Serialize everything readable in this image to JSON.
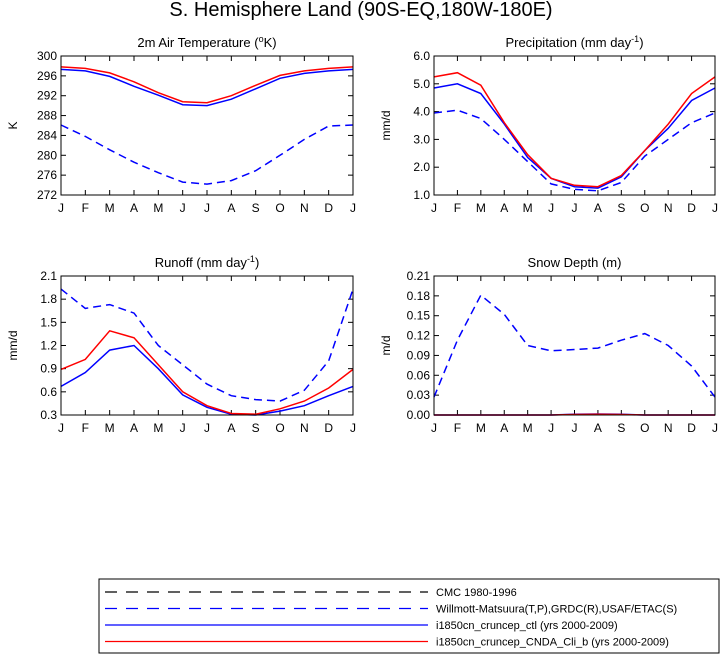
{
  "figure_title": "S. Hemisphere Land (90S-EQ,180W-180E)",
  "months": [
    "J",
    "F",
    "M",
    "A",
    "M",
    "J",
    "J",
    "A",
    "S",
    "O",
    "N",
    "D",
    "J"
  ],
  "colors": {
    "ctl": "#0000ff",
    "cnda": "#ff0000",
    "obs_blue": "#0000ff",
    "obs_black": "#000000"
  },
  "chart_data": [
    {
      "type": "line",
      "title_main": "2m Air Temperature (",
      "title_sup": "o",
      "title_rest": "K)",
      "ylabel": "K",
      "ylim": [
        272,
        300
      ],
      "yticks": [
        "272",
        "276",
        "280",
        "284",
        "288",
        "292",
        "296",
        "300"
      ],
      "x": [
        "J",
        "F",
        "M",
        "A",
        "M",
        "J",
        "J",
        "A",
        "S",
        "O",
        "N",
        "D",
        "J"
      ],
      "series": [
        {
          "key": "obs",
          "style": "dash",
          "color": "#0000ff",
          "values": [
            286.1,
            283.8,
            281.1,
            278.6,
            276.5,
            274.6,
            274.2,
            274.9,
            276.9,
            280.0,
            283.2,
            285.9,
            286.1
          ]
        },
        {
          "key": "ctl",
          "style": "solid",
          "color": "#0000ff",
          "values": [
            297.3,
            297.0,
            295.9,
            293.9,
            292.1,
            290.2,
            290.0,
            291.3,
            293.4,
            295.5,
            296.5,
            297.0,
            297.3
          ]
        },
        {
          "key": "cnda",
          "style": "solid",
          "color": "#ff0000",
          "values": [
            297.8,
            297.5,
            296.6,
            294.8,
            292.6,
            290.8,
            290.6,
            292.0,
            294.1,
            296.1,
            297.0,
            297.5,
            297.8
          ]
        }
      ]
    },
    {
      "type": "line",
      "title_main": "Precipitation (mm day",
      "title_sup": "-1",
      "title_rest": ")",
      "ylabel": "mm/d",
      "ylim": [
        1.0,
        6.0
      ],
      "yticks": [
        "1.0",
        "2.0",
        "3.0",
        "4.0",
        "5.0",
        "6.0"
      ],
      "x": [
        "J",
        "F",
        "M",
        "A",
        "M",
        "J",
        "J",
        "A",
        "S",
        "O",
        "N",
        "D",
        "J"
      ],
      "series": [
        {
          "key": "obs",
          "style": "dash",
          "color": "#0000ff",
          "values": [
            3.95,
            4.05,
            3.75,
            3.0,
            2.2,
            1.4,
            1.2,
            1.15,
            1.45,
            2.4,
            3.0,
            3.6,
            3.95
          ]
        },
        {
          "key": "ctl",
          "style": "solid",
          "color": "#0000ff",
          "values": [
            4.85,
            5.0,
            4.65,
            3.55,
            2.35,
            1.6,
            1.3,
            1.25,
            1.65,
            2.6,
            3.4,
            4.4,
            4.85
          ]
        },
        {
          "key": "cnda",
          "style": "solid",
          "color": "#ff0000",
          "values": [
            5.25,
            5.4,
            4.95,
            3.6,
            2.45,
            1.6,
            1.35,
            1.3,
            1.7,
            2.6,
            3.55,
            4.65,
            5.25
          ]
        }
      ]
    },
    {
      "type": "line",
      "title_main": "Runoff (mm day",
      "title_sup": "-1",
      "title_rest": ")",
      "ylabel": "mm/d",
      "ylim": [
        0.3,
        2.1
      ],
      "yticks": [
        "0.3",
        "0.6",
        "0.9",
        "1.2",
        "1.5",
        "1.8",
        "2.1"
      ],
      "x": [
        "J",
        "F",
        "M",
        "A",
        "M",
        "J",
        "J",
        "A",
        "S",
        "O",
        "N",
        "D",
        "J"
      ],
      "series": [
        {
          "key": "obs",
          "style": "dash",
          "color": "#0000ff",
          "values": [
            1.93,
            1.68,
            1.73,
            1.62,
            1.2,
            0.95,
            0.7,
            0.55,
            0.5,
            0.48,
            0.62,
            1.0,
            1.93
          ]
        },
        {
          "key": "ctl",
          "style": "solid",
          "color": "#0000ff",
          "values": [
            0.67,
            0.85,
            1.14,
            1.2,
            0.9,
            0.56,
            0.4,
            0.31,
            0.3,
            0.35,
            0.42,
            0.55,
            0.67
          ]
        },
        {
          "key": "cnda",
          "style": "solid",
          "color": "#ff0000",
          "values": [
            0.89,
            1.02,
            1.39,
            1.3,
            0.95,
            0.6,
            0.42,
            0.32,
            0.31,
            0.38,
            0.48,
            0.65,
            0.89
          ]
        }
      ]
    },
    {
      "type": "line",
      "title_main": "Snow Depth (m)",
      "title_sup": "",
      "title_rest": "",
      "ylabel": "m/d",
      "ylim": [
        0.0,
        0.21
      ],
      "yticks": [
        "0.00",
        "0.03",
        "0.06",
        "0.09",
        "0.12",
        "0.15",
        "0.18",
        "0.21"
      ],
      "x": [
        "J",
        "F",
        "M",
        "A",
        "M",
        "J",
        "J",
        "A",
        "S",
        "O",
        "N",
        "D",
        "J"
      ],
      "series": [
        {
          "key": "obs",
          "style": "dash",
          "color": "#0000ff",
          "values": [
            0.027,
            0.113,
            0.181,
            0.152,
            0.105,
            0.097,
            0.099,
            0.101,
            0.113,
            0.123,
            0.105,
            0.074,
            0.027
          ]
        },
        {
          "key": "ctl",
          "style": "solid",
          "color": "#0000ff",
          "values": [
            0.0,
            0.0,
            0.0,
            0.0,
            0.0,
            0.0,
            0.001,
            0.0015,
            0.001,
            0.0,
            0.0,
            0.0,
            0.0
          ]
        },
        {
          "key": "cnda",
          "style": "solid",
          "color": "#ff0000",
          "values": [
            0.0,
            0.0,
            0.0,
            0.0,
            0.0,
            0.0,
            0.0008,
            0.001,
            0.0008,
            0.0,
            0.0,
            0.0,
            0.0
          ]
        }
      ]
    }
  ],
  "legend": [
    {
      "label": "CMC 1980-1996",
      "style": "dash",
      "color": "#000000"
    },
    {
      "label": "Willmott-Matsuura(T,P),GRDC(R),USAF/ETAC(S)",
      "style": "dash",
      "color": "#0000ff"
    },
    {
      "label": "i1850cn_cruncep_ctl (yrs 2000-2009)",
      "style": "solid",
      "color": "#0000ff"
    },
    {
      "label": "i1850cn_cruncep_CNDA_Cli_b (yrs 2000-2009)",
      "style": "solid",
      "color": "#ff0000"
    }
  ]
}
